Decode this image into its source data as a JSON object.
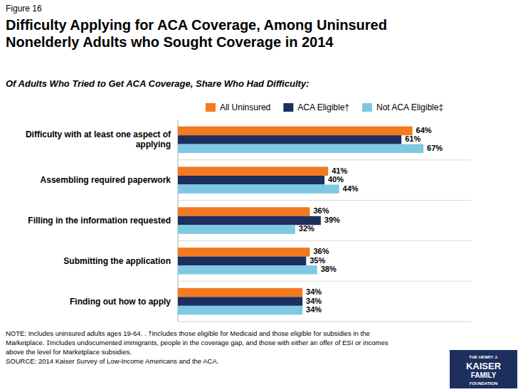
{
  "chart_data": {
    "type": "bar",
    "orientation": "horizontal",
    "title": "Difficulty Applying for ACA Coverage, Among Uninsured\nNonelderly Adults who Sought Coverage in 2014",
    "subtitle": "Of Adults Who Tried to Get ACA Coverage, Share Who Had Difficulty:",
    "annotations": [
      "Figure 16",
      "NOTE: Includes uninsured adults ages 19-64. .  †Includes those eligible for Medicaid and those eligible for subsidies in the\nMarketplace. ‡Includes undocumented immigrants, people in the coverage gap, and those with either an offer of ESI or incomes\nabove the level for Marketplace subsidies.\nSOURCE: 2014 Kaiser Survey of Low-Income Americans and the ACA.",
      "THE HENRY J.",
      "KAISER",
      "FAMILY",
      "FOUNDATION"
    ],
    "categories": [
      "Difficulty with at least one aspect of applying",
      "Assembling required paperwork",
      "Filling in the information requested",
      "Submitting the application",
      "Finding out how to apply"
    ],
    "series": [
      {
        "name": "All Uninsured",
        "color": "#F47920",
        "values": [
          64,
          41,
          36,
          36,
          34
        ],
        "value_labels": [
          "64%",
          "41%",
          "36%",
          "36%",
          "34%"
        ]
      },
      {
        "name": "ACA Eligible†",
        "color": "#1C2F5E",
        "values": [
          61,
          40,
          39,
          35,
          34
        ],
        "value_labels": [
          "61%",
          "40%",
          "39%",
          "35%",
          "34%"
        ]
      },
      {
        "name": "Not ACA Eligible‡",
        "color": "#7EC8E3",
        "values": [
          67,
          44,
          32,
          38,
          34
        ],
        "value_labels": [
          "67%",
          "44%",
          "32%",
          "38%",
          "34%"
        ]
      }
    ],
    "xlim": [
      0,
      80
    ],
    "data_labels": true,
    "tick_labels": "y",
    "grid": false,
    "legend": "top"
  }
}
